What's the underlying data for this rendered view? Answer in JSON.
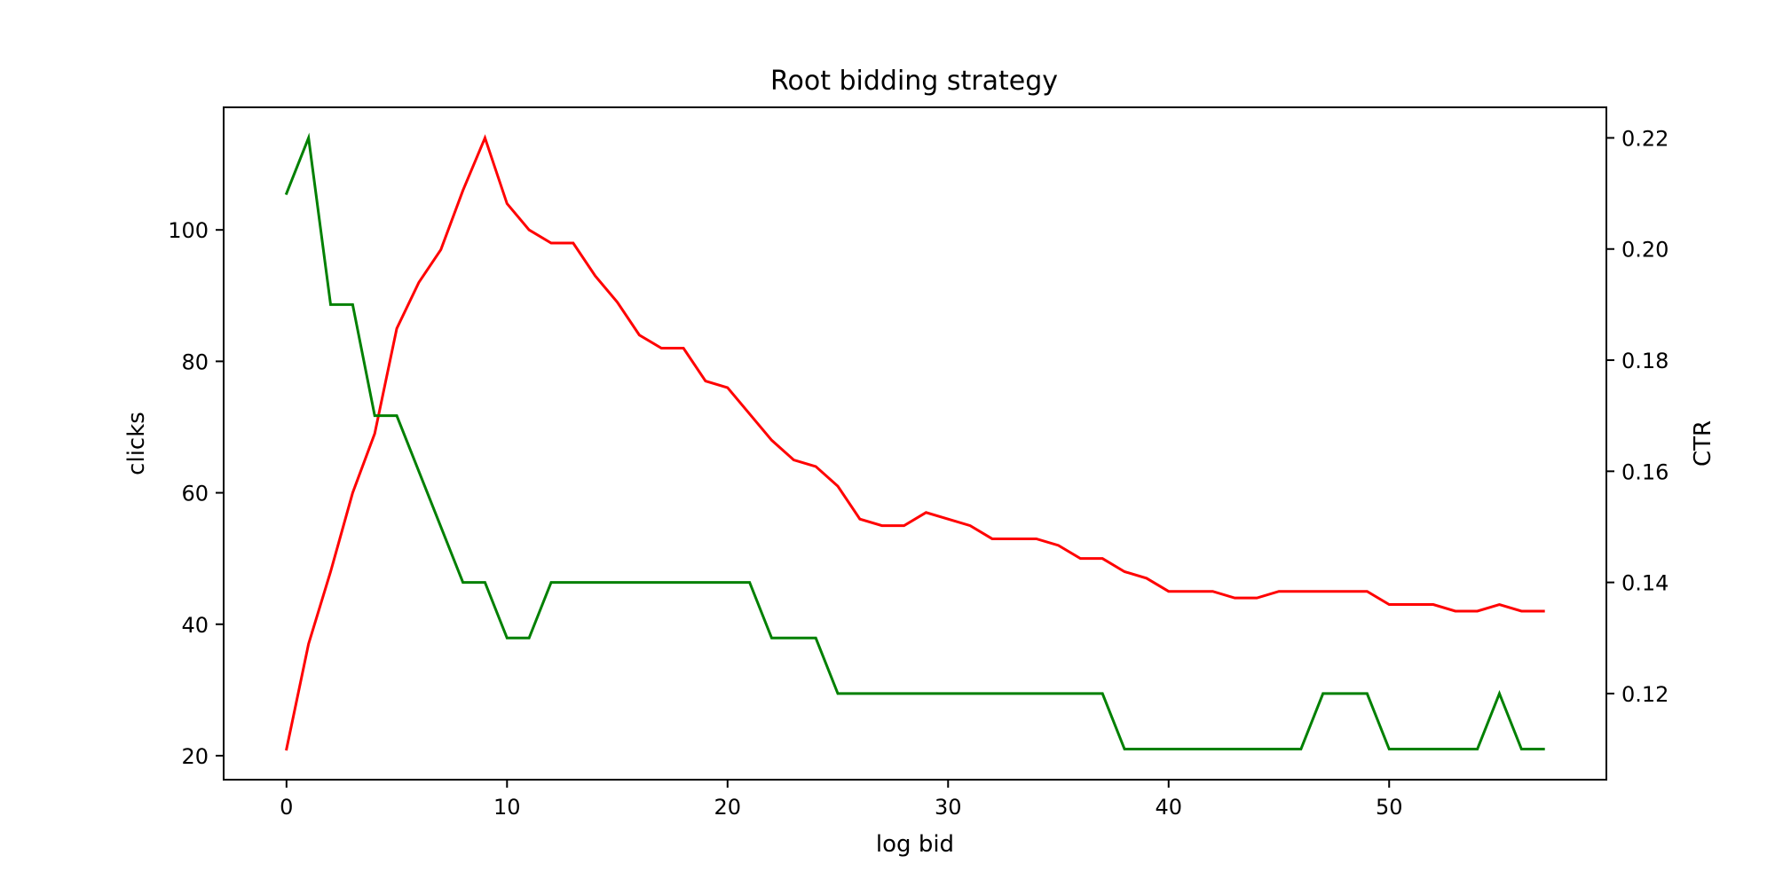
{
  "chart_data": {
    "type": "line",
    "title": "Root bidding strategy",
    "xlabel": "log bid",
    "xlim": [
      -2.85,
      59.85
    ],
    "xticks": [
      0,
      10,
      20,
      30,
      40,
      50
    ],
    "y_left": {
      "label": "clicks",
      "color": "#ff0000",
      "lim": [
        16.35,
        118.65
      ],
      "ticks": [
        20,
        40,
        60,
        80,
        100
      ]
    },
    "y_right": {
      "label": "CTR",
      "color": "#008000",
      "lim": [
        0.1045,
        0.2255
      ],
      "ticks": [
        0.12,
        0.14,
        0.16,
        0.18,
        0.2,
        0.22
      ],
      "tick_labels": [
        "0.12",
        "0.14",
        "0.16",
        "0.18",
        "0.20",
        "0.22"
      ]
    },
    "series": [
      {
        "axis": "left",
        "color": "#ff0000",
        "x": [
          0,
          1,
          2,
          3,
          4,
          5,
          6,
          7,
          8,
          9,
          10,
          11,
          12,
          13,
          14,
          15,
          16,
          17,
          18,
          19,
          20,
          21,
          22,
          23,
          24,
          25,
          26,
          27,
          28,
          29,
          30,
          31,
          32,
          33,
          34,
          35,
          36,
          37,
          38,
          39,
          40,
          41,
          42,
          43,
          44,
          45,
          46,
          47,
          48,
          49,
          50,
          51,
          52,
          53,
          54,
          55,
          56,
          57
        ],
        "values": [
          21,
          37,
          48,
          60,
          69,
          85,
          92,
          97,
          106,
          114,
          104,
          100,
          98,
          98,
          93,
          89,
          84,
          82,
          82,
          77,
          76,
          72,
          68,
          65,
          64,
          61,
          56,
          55,
          55,
          57,
          56,
          55,
          53,
          53,
          53,
          52,
          50,
          50,
          48,
          47,
          45,
          45,
          45,
          44,
          44,
          45,
          45,
          45,
          45,
          45,
          43,
          43,
          43,
          42,
          42,
          43,
          42,
          42
        ]
      },
      {
        "axis": "right",
        "color": "#008000",
        "x": [
          0,
          1,
          2,
          3,
          4,
          5,
          6,
          7,
          8,
          9,
          10,
          11,
          12,
          13,
          14,
          15,
          16,
          17,
          18,
          19,
          20,
          21,
          22,
          23,
          24,
          25,
          26,
          27,
          28,
          29,
          30,
          31,
          32,
          33,
          34,
          35,
          36,
          37,
          38,
          39,
          40,
          41,
          42,
          43,
          44,
          45,
          46,
          47,
          48,
          49,
          50,
          51,
          52,
          53,
          54,
          55,
          56,
          57
        ],
        "values": [
          0.21,
          0.22,
          0.19,
          0.19,
          0.17,
          0.17,
          0.16,
          0.15,
          0.14,
          0.14,
          0.13,
          0.13,
          0.14,
          0.14,
          0.14,
          0.14,
          0.14,
          0.14,
          0.14,
          0.14,
          0.14,
          0.14,
          0.13,
          0.13,
          0.13,
          0.12,
          0.12,
          0.12,
          0.12,
          0.12,
          0.12,
          0.12,
          0.12,
          0.12,
          0.12,
          0.12,
          0.12,
          0.12,
          0.11,
          0.11,
          0.11,
          0.11,
          0.11,
          0.11,
          0.11,
          0.11,
          0.11,
          0.12,
          0.12,
          0.12,
          0.11,
          0.11,
          0.11,
          0.11,
          0.11,
          0.12,
          0.11,
          0.11
        ]
      }
    ]
  }
}
